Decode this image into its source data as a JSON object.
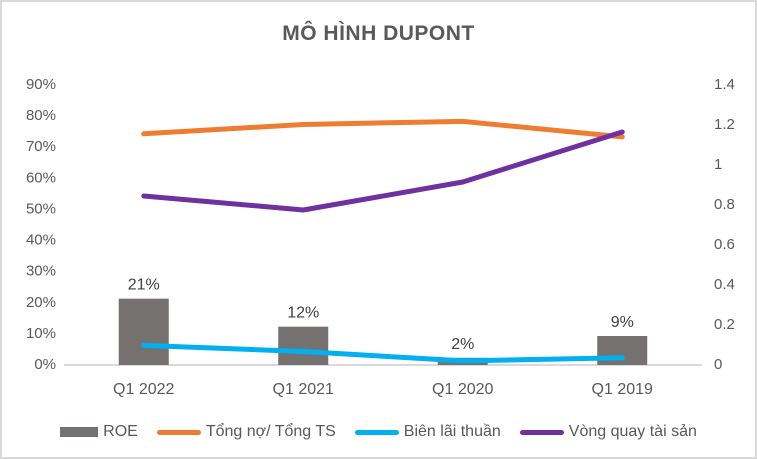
{
  "title": "MÔ HÌNH DUPONT",
  "colors": {
    "bar_gray": "#757171",
    "orange": "#ED7D31",
    "cyan": "#00B0F0",
    "purple": "#7030A0",
    "axis_line": "#D9D9D9",
    "tick_text": "#595959",
    "data_label_text": "#404040",
    "title_text": "#595959"
  },
  "chart_data": {
    "type": "bar",
    "subtype": "combo-bar-line-dual-axis",
    "title": "MÔ HÌNH DUPONT",
    "categories": [
      "Q1 2022",
      "Q1 2021",
      "Q1 2020",
      "Q1 2019"
    ],
    "series": [
      {
        "name": "ROE",
        "type": "bar",
        "axis": "left",
        "color": "#757171",
        "values": [
          21,
          12,
          2,
          9
        ],
        "data_labels": [
          "21%",
          "12%",
          "2%",
          "9%"
        ]
      },
      {
        "name": "Tổng nợ/ Tổng TS",
        "type": "line",
        "axis": "left",
        "color": "#ED7D31",
        "values": [
          74,
          77,
          78,
          73
        ]
      },
      {
        "name": "Biên lãi thuần",
        "type": "line",
        "axis": "left",
        "color": "#00B0F0",
        "values": [
          6,
          4,
          1,
          2
        ]
      },
      {
        "name": "Vòng quay tài sản",
        "type": "line",
        "axis": "right",
        "color": "#7030A0",
        "values": [
          0.84,
          0.77,
          0.91,
          1.16
        ]
      }
    ],
    "left_axis": {
      "min": 0,
      "max": 90,
      "step": 10,
      "unit": "%",
      "ticks": [
        "0%",
        "10%",
        "20%",
        "30%",
        "40%",
        "50%",
        "60%",
        "70%",
        "80%",
        "90%"
      ]
    },
    "right_axis": {
      "min": 0,
      "max": 1.4,
      "step": 0.2,
      "ticks": [
        "0",
        "0.2",
        "0.4",
        "0.6",
        "0.8",
        "1",
        "1.2",
        "1.4"
      ]
    },
    "grid": false,
    "legend_position": "bottom"
  },
  "legend": {
    "items": [
      {
        "label": "ROE",
        "swatch": "rect",
        "color": "#757171"
      },
      {
        "label": "Tổng nợ/ Tổng TS",
        "swatch": "line",
        "color": "#ED7D31"
      },
      {
        "label": "Biên lãi thuần",
        "swatch": "line",
        "color": "#00B0F0"
      },
      {
        "label": "Vòng quay tài sản",
        "swatch": "line",
        "color": "#7030A0"
      }
    ]
  }
}
